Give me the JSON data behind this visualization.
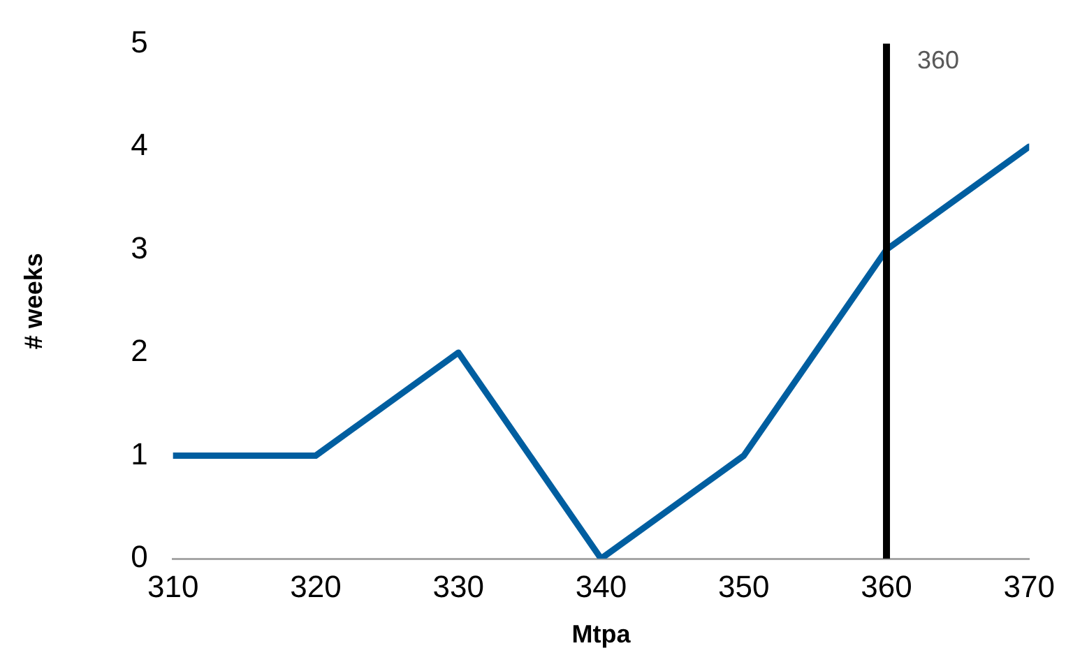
{
  "chart_data": {
    "type": "line",
    "xlabel": "Mtpa",
    "ylabel": "# weeks",
    "x": [
      310,
      320,
      330,
      340,
      350,
      360,
      370
    ],
    "series": [
      {
        "color": "#005ea0",
        "values": [
          1,
          1,
          2,
          0,
          1,
          3,
          4
        ]
      }
    ],
    "xlim": [
      310,
      370
    ],
    "xticks": [
      310,
      320,
      330,
      340,
      350,
      360,
      370
    ],
    "ylim": [
      0,
      5
    ],
    "yticks": [
      0,
      1,
      2,
      3,
      4,
      5
    ],
    "grid": false,
    "legend": false,
    "marker": "none",
    "line_style": "solid",
    "ref_lines": [
      {
        "axis": "x",
        "value": 360,
        "label": "360",
        "color": "#000000"
      }
    ]
  }
}
